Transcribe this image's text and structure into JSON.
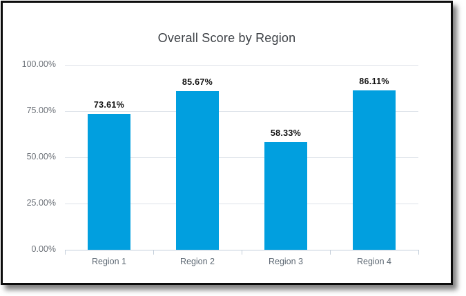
{
  "panel": {
    "background": "#ffffff",
    "border_color": "#0c0c0c"
  },
  "chart_data": {
    "type": "bar",
    "title": "Overall Score by Region",
    "categories": [
      "Region 1",
      "Region 2",
      "Region 3",
      "Region 4"
    ],
    "values": [
      73.61,
      85.67,
      58.33,
      86.11
    ],
    "value_labels": [
      "73.61%",
      "85.67%",
      "58.33%",
      "86.11%"
    ],
    "xlabel": "",
    "ylabel": "",
    "ylim": [
      0,
      100
    ],
    "y_tick_values": [
      100,
      75,
      50,
      25,
      0
    ],
    "y_tick_labels": [
      "100.00%",
      "75.00%",
      "50.00%",
      "25.00%",
      "0.00%"
    ],
    "grid": true,
    "legend": "none",
    "colors": {
      "bar": "#019fdf",
      "gridline": "#dde2e9",
      "axis_line": "#c3ceda",
      "y_label": "#6e737a",
      "x_label": "#5d6873",
      "value_label": "#111111",
      "title": "#3e4247"
    }
  }
}
